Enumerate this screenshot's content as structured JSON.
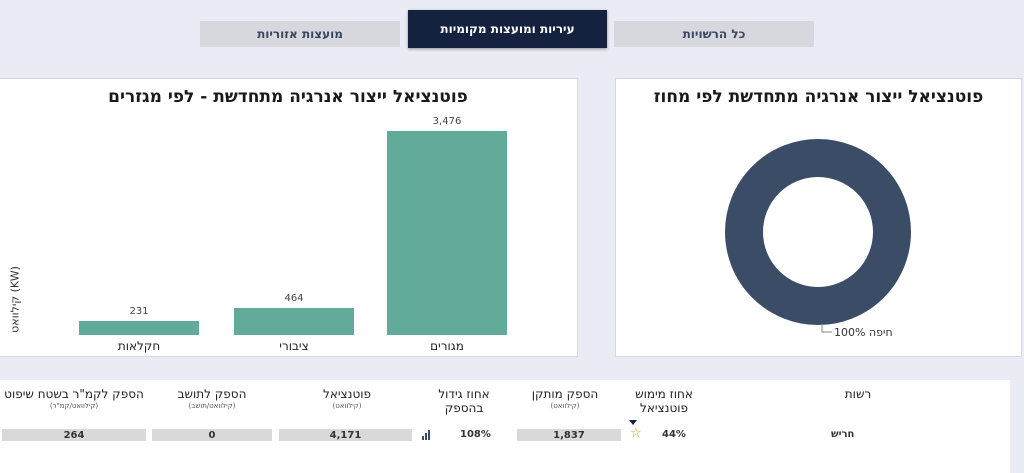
{
  "tabs": [
    {
      "label": "כל הרשויות",
      "active": false
    },
    {
      "label": "עיריות ומועצות מקומיות",
      "active": true
    },
    {
      "label": "מועצות אזוריות",
      "active": false
    }
  ],
  "donut_panel": {
    "title": "פוטנציאל ייצור אנרגיה מתחדשת לפי מחוז",
    "legend_label": "100% חיפה"
  },
  "bar_panel": {
    "title": "פוטנציאל ייצור אנרגיה מתחדשת - לפי מגזרים",
    "ylabel": "קילוואט (KW)"
  },
  "chart_data": [
    {
      "type": "pie",
      "title": "פוטנציאל ייצור אנרגיה מתחדשת לפי מחוז",
      "categories": [
        "חיפה"
      ],
      "values": [
        100
      ],
      "labels": [
        "100% חיפה"
      ],
      "colors": [
        "#3b4d66"
      ]
    },
    {
      "type": "bar",
      "title": "פוטנציאל ייצור אנרגיה מתחדשת - לפי מגזרים",
      "ylabel": "קילוואט (KW)",
      "categories": [
        "מגורים",
        "ציבורי",
        "חקלאות"
      ],
      "values": [
        3476,
        464,
        231
      ],
      "value_labels": [
        "3,476",
        "464",
        "231"
      ],
      "ylim": [
        0,
        3476
      ],
      "color": "#62ab9b"
    }
  ],
  "table": {
    "headers": {
      "authority": "רשות",
      "utilization": "אחוז מימוש פוטנציאל",
      "installed": "הספק מותקן",
      "installed_unit": "(קילוואט)",
      "growth": "אחוז גידול בהספק",
      "potential": "פוטנציאל",
      "potential_unit": "(קילוואט)",
      "per_resident": "הספק לתושב",
      "per_resident_unit": "(קילוואט/תושב)",
      "per_sqkm": "הספק לקמ\"ר בשטח שיפוט",
      "per_sqkm_unit": "(קילוואט/קמ\"ר)"
    },
    "rows": [
      {
        "authority": "חריש",
        "utilization": "44%",
        "installed": "1,837",
        "growth": "108%",
        "potential": "4,171",
        "per_resident": "0",
        "per_sqkm": "264"
      }
    ]
  }
}
